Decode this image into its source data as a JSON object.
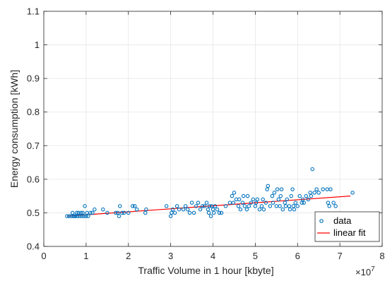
{
  "chart_data": {
    "type": "scatter",
    "xlabel": "Traffic Volume in 1 hour [kbyte]",
    "ylabel": "Energy consumption [kWh]",
    "x_exponent_label": "×10",
    "x_exponent_power": "7",
    "x_multiplier": 10000000,
    "xlim": [
      0,
      8
    ],
    "ylim": [
      0.4,
      1.1
    ],
    "xticks": [
      0,
      1,
      2,
      3,
      4,
      5,
      6,
      7,
      8
    ],
    "yticks": [
      0.4,
      0.5,
      0.6,
      0.7,
      0.8,
      0.9,
      1.0,
      1.1
    ],
    "xtick_labels": [
      "0",
      "1",
      "2",
      "3",
      "4",
      "5",
      "6",
      "7",
      "8"
    ],
    "ytick_labels": [
      "0.4",
      "0.5",
      "0.6",
      "0.7",
      "0.8",
      "0.9",
      "1",
      "1.1"
    ],
    "grid": true,
    "legend_position": "bottom-right",
    "colors": {
      "data": "#0072BD",
      "fit": "#FF0000"
    },
    "series": [
      {
        "name": "data",
        "kind": "scatter",
        "points": [
          [
            0.55,
            0.49
          ],
          [
            0.6,
            0.49
          ],
          [
            0.65,
            0.49
          ],
          [
            0.68,
            0.5
          ],
          [
            0.7,
            0.49
          ],
          [
            0.72,
            0.49
          ],
          [
            0.75,
            0.49
          ],
          [
            0.78,
            0.5
          ],
          [
            0.8,
            0.49
          ],
          [
            0.82,
            0.5
          ],
          [
            0.85,
            0.49
          ],
          [
            0.88,
            0.5
          ],
          [
            0.9,
            0.49
          ],
          [
            0.92,
            0.5
          ],
          [
            0.95,
            0.49
          ],
          [
            0.97,
            0.52
          ],
          [
            1.0,
            0.49
          ],
          [
            1.02,
            0.5
          ],
          [
            1.05,
            0.49
          ],
          [
            1.1,
            0.5
          ],
          [
            1.15,
            0.5
          ],
          [
            1.2,
            0.51
          ],
          [
            1.4,
            0.51
          ],
          [
            1.5,
            0.5
          ],
          [
            1.7,
            0.5
          ],
          [
            1.75,
            0.5
          ],
          [
            1.78,
            0.49
          ],
          [
            1.8,
            0.52
          ],
          [
            1.85,
            0.5
          ],
          [
            1.9,
            0.5
          ],
          [
            2.0,
            0.5
          ],
          [
            2.1,
            0.52
          ],
          [
            2.15,
            0.52
          ],
          [
            2.2,
            0.51
          ],
          [
            2.4,
            0.5
          ],
          [
            2.42,
            0.51
          ],
          [
            2.9,
            0.52
          ],
          [
            3.0,
            0.49
          ],
          [
            3.02,
            0.5
          ],
          [
            3.05,
            0.51
          ],
          [
            3.1,
            0.5
          ],
          [
            3.15,
            0.52
          ],
          [
            3.2,
            0.51
          ],
          [
            3.3,
            0.51
          ],
          [
            3.35,
            0.52
          ],
          [
            3.4,
            0.51
          ],
          [
            3.45,
            0.5
          ],
          [
            3.5,
            0.53
          ],
          [
            3.55,
            0.5
          ],
          [
            3.6,
            0.52
          ],
          [
            3.65,
            0.53
          ],
          [
            3.7,
            0.51
          ],
          [
            3.75,
            0.52
          ],
          [
            3.8,
            0.52
          ],
          [
            3.85,
            0.53
          ],
          [
            3.88,
            0.51
          ],
          [
            3.9,
            0.5
          ],
          [
            3.92,
            0.52
          ],
          [
            3.95,
            0.49
          ],
          [
            3.97,
            0.52
          ],
          [
            4.0,
            0.51
          ],
          [
            4.02,
            0.5
          ],
          [
            4.05,
            0.52
          ],
          [
            4.1,
            0.51
          ],
          [
            4.15,
            0.5
          ],
          [
            4.2,
            0.5
          ],
          [
            4.3,
            0.52
          ],
          [
            4.4,
            0.53
          ],
          [
            4.45,
            0.55
          ],
          [
            4.48,
            0.53
          ],
          [
            4.5,
            0.56
          ],
          [
            4.55,
            0.54
          ],
          [
            4.6,
            0.52
          ],
          [
            4.62,
            0.54
          ],
          [
            4.65,
            0.51
          ],
          [
            4.7,
            0.53
          ],
          [
            4.72,
            0.55
          ],
          [
            4.75,
            0.52
          ],
          [
            4.8,
            0.51
          ],
          [
            4.82,
            0.55
          ],
          [
            4.85,
            0.52
          ],
          [
            4.9,
            0.53
          ],
          [
            4.95,
            0.54
          ],
          [
            5.0,
            0.52
          ],
          [
            5.02,
            0.53
          ],
          [
            5.05,
            0.54
          ],
          [
            5.1,
            0.51
          ],
          [
            5.15,
            0.52
          ],
          [
            5.18,
            0.54
          ],
          [
            5.2,
            0.51
          ],
          [
            5.25,
            0.53
          ],
          [
            5.28,
            0.57
          ],
          [
            5.3,
            0.58
          ],
          [
            5.35,
            0.52
          ],
          [
            5.4,
            0.55
          ],
          [
            5.42,
            0.53
          ],
          [
            5.45,
            0.56
          ],
          [
            5.5,
            0.52
          ],
          [
            5.52,
            0.57
          ],
          [
            5.55,
            0.54
          ],
          [
            5.58,
            0.52
          ],
          [
            5.6,
            0.55
          ],
          [
            5.62,
            0.57
          ],
          [
            5.65,
            0.51
          ],
          [
            5.7,
            0.53
          ],
          [
            5.72,
            0.52
          ],
          [
            5.75,
            0.54
          ],
          [
            5.8,
            0.52
          ],
          [
            5.82,
            0.51
          ],
          [
            5.85,
            0.55
          ],
          [
            5.88,
            0.57
          ],
          [
            5.9,
            0.52
          ],
          [
            5.92,
            0.51
          ],
          [
            5.95,
            0.53
          ],
          [
            6.0,
            0.52
          ],
          [
            6.05,
            0.55
          ],
          [
            6.1,
            0.53
          ],
          [
            6.12,
            0.54
          ],
          [
            6.15,
            0.53
          ],
          [
            6.2,
            0.55
          ],
          [
            6.25,
            0.54
          ],
          [
            6.3,
            0.56
          ],
          [
            6.32,
            0.55
          ],
          [
            6.35,
            0.63
          ],
          [
            6.4,
            0.56
          ],
          [
            6.45,
            0.57
          ],
          [
            6.5,
            0.56
          ],
          [
            6.6,
            0.57
          ],
          [
            6.7,
            0.57
          ],
          [
            6.72,
            0.53
          ],
          [
            6.75,
            0.52
          ],
          [
            6.78,
            0.57
          ],
          [
            6.85,
            0.53
          ],
          [
            6.9,
            0.52
          ],
          [
            7.3,
            0.56
          ]
        ]
      },
      {
        "name": "linear fit",
        "kind": "line",
        "points": [
          [
            0.55,
            0.49
          ],
          [
            7.25,
            0.55
          ]
        ]
      }
    ]
  }
}
